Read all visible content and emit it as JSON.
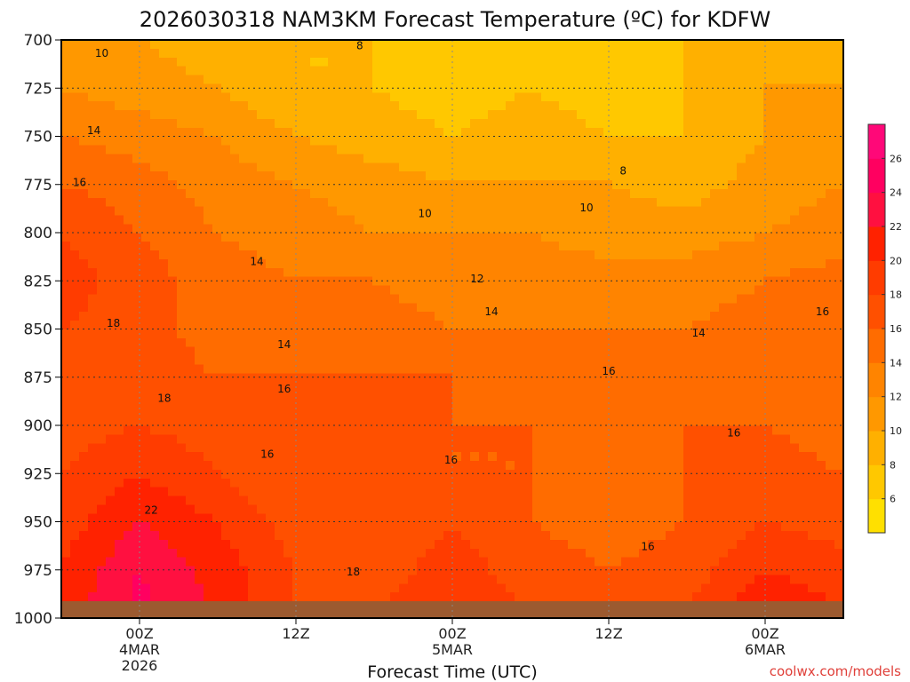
{
  "chart_data": {
    "type": "heatmap",
    "title": "2026030318 NAM3KM Forecast Temperature (ºC) for KDFW",
    "xlabel": "Forecast Time (UTC)",
    "ylabel": "",
    "watermark": "coolwx.com/models",
    "x_range_hours": [
      0,
      60
    ],
    "y_axis": {
      "range": [
        1000,
        700
      ],
      "ticks": [
        "700",
        "725",
        "750",
        "775",
        "800",
        "825",
        "850",
        "875",
        "900",
        "925",
        "950",
        "975",
        "1000"
      ]
    },
    "x_ticks": [
      {
        "hour": 6,
        "lines": [
          "00Z",
          "4MAR",
          "2026"
        ]
      },
      {
        "hour": 18,
        "lines": [
          "12Z"
        ]
      },
      {
        "hour": 30,
        "lines": [
          "00Z",
          "5MAR"
        ]
      },
      {
        "hour": 42,
        "lines": [
          "12Z"
        ]
      },
      {
        "hour": 54,
        "lines": [
          "00Z",
          "6MAR"
        ]
      }
    ],
    "colorbar": {
      "ticks": [
        "6",
        "8",
        "10",
        "12",
        "14",
        "16",
        "18",
        "20",
        "22",
        "24",
        "26"
      ],
      "min": 4,
      "max": 28,
      "colors": [
        "#ffe000",
        "#ffc800",
        "#ffb000",
        "#ff9800",
        "#ff8400",
        "#ff6c00",
        "#ff5000",
        "#ff3c00",
        "#ff2200",
        "#ff1040",
        "#ff0060",
        "#ff0878"
      ]
    },
    "hours": [
      0,
      6,
      12,
      18,
      24,
      30,
      36,
      42,
      48,
      54,
      60
    ],
    "pressure_levels": [
      1000,
      975,
      950,
      925,
      900,
      875,
      850,
      825,
      800,
      775,
      750,
      725,
      700
    ],
    "temperature_c": [
      [
        21,
        25,
        22,
        18,
        18,
        20,
        18,
        17,
        18,
        22,
        20
      ],
      [
        20,
        24,
        21,
        18,
        17,
        19,
        17,
        16,
        17,
        20,
        19
      ],
      [
        19,
        22,
        20,
        17,
        16,
        18,
        16,
        15,
        16,
        18,
        17
      ],
      [
        18,
        20,
        18,
        16,
        16,
        16,
        16,
        15,
        16,
        17,
        16
      ],
      [
        17,
        18,
        17,
        17,
        17,
        16,
        16,
        16,
        16,
        16,
        15
      ],
      [
        17,
        17,
        16,
        16,
        16,
        16,
        15,
        15,
        15,
        15,
        15
      ],
      [
        18,
        17,
        15,
        15,
        15,
        14,
        14,
        14,
        14,
        15,
        16
      ],
      [
        19,
        17,
        15,
        14,
        14,
        13,
        13,
        13,
        13,
        14,
        15
      ],
      [
        18,
        16,
        14,
        13,
        12,
        12,
        12,
        11,
        11,
        12,
        13
      ],
      [
        16,
        15,
        13,
        12,
        11,
        10,
        10,
        10,
        9,
        11,
        12
      ],
      [
        14,
        13,
        12,
        10,
        9,
        8,
        9,
        8,
        8,
        10,
        11
      ],
      [
        12,
        11,
        10,
        8,
        8,
        7,
        8,
        7,
        8,
        10,
        10
      ],
      [
        11,
        10,
        9,
        8,
        8,
        6,
        7,
        6,
        8,
        9,
        9
      ]
    ],
    "contour_labels": [
      {
        "text": "10",
        "hour": 3.1,
        "p": 707
      },
      {
        "text": "8",
        "hour": 22.9,
        "p": 703
      },
      {
        "text": "14",
        "hour": 2.5,
        "p": 747
      },
      {
        "text": "8",
        "hour": 43.1,
        "p": 768
      },
      {
        "text": "16",
        "hour": 1.4,
        "p": 774
      },
      {
        "text": "10",
        "hour": 27.9,
        "p": 790
      },
      {
        "text": "10",
        "hour": 40.3,
        "p": 787
      },
      {
        "text": "14",
        "hour": 15.0,
        "p": 815
      },
      {
        "text": "12",
        "hour": 31.9,
        "p": 824
      },
      {
        "text": "14",
        "hour": 33.0,
        "p": 841
      },
      {
        "text": "18",
        "hour": 4.0,
        "p": 847
      },
      {
        "text": "14",
        "hour": 48.9,
        "p": 852
      },
      {
        "text": "16",
        "hour": 58.4,
        "p": 841
      },
      {
        "text": "14",
        "hour": 17.1,
        "p": 858
      },
      {
        "text": "16",
        "hour": 42.0,
        "p": 872
      },
      {
        "text": "16",
        "hour": 17.1,
        "p": 881
      },
      {
        "text": "18",
        "hour": 7.9,
        "p": 886
      },
      {
        "text": "16",
        "hour": 51.6,
        "p": 904
      },
      {
        "text": "16",
        "hour": 15.8,
        "p": 915
      },
      {
        "text": "16",
        "hour": 29.9,
        "p": 918
      },
      {
        "text": "22",
        "hour": 6.9,
        "p": 944
      },
      {
        "text": "16",
        "hour": 45.0,
        "p": 963
      },
      {
        "text": "18",
        "hour": 22.4,
        "p": 976
      }
    ]
  }
}
